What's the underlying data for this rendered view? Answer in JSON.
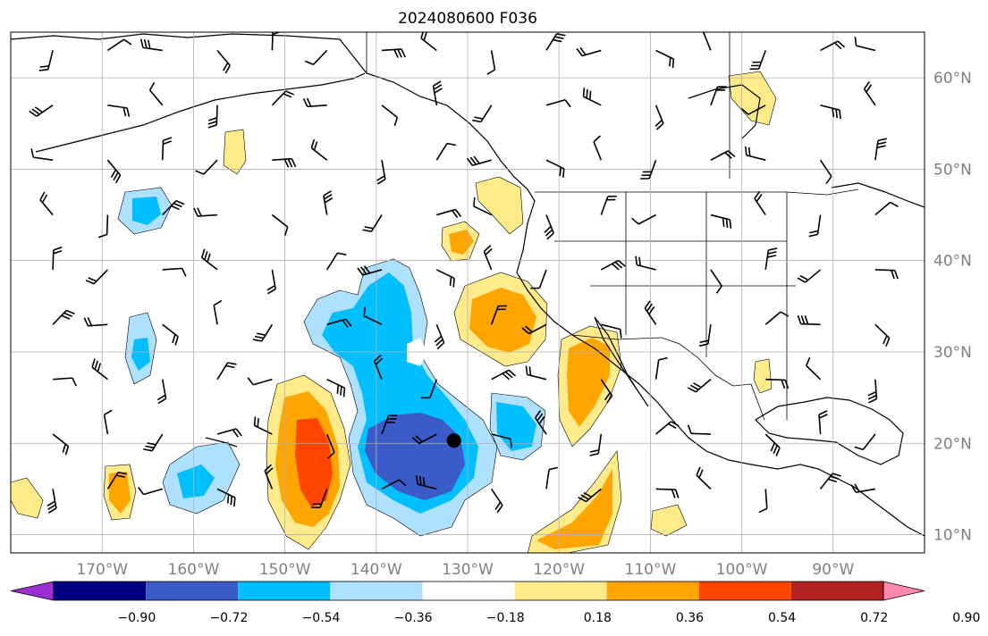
{
  "title": "2024080600 F036",
  "map": {
    "lon_range": [
      -180,
      -80
    ],
    "lat_range": [
      8,
      65
    ],
    "lon_ticks": [
      {
        "value": -170,
        "label": "170°W"
      },
      {
        "value": -160,
        "label": "160°W"
      },
      {
        "value": -150,
        "label": "150°W"
      },
      {
        "value": -140,
        "label": "140°W"
      },
      {
        "value": -130,
        "label": "130°W"
      },
      {
        "value": -120,
        "label": "120°W"
      },
      {
        "value": -110,
        "label": "110°W"
      },
      {
        "value": -100,
        "label": "100°W"
      },
      {
        "value": -90,
        "label": "90°W"
      }
    ],
    "lat_ticks": [
      {
        "value": 60,
        "label": "60°N"
      },
      {
        "value": 50,
        "label": "50°N"
      },
      {
        "value": 40,
        "label": "40°N"
      },
      {
        "value": 30,
        "label": "30°N"
      },
      {
        "value": 20,
        "label": "20°N"
      },
      {
        "value": 10,
        "label": "10°N"
      }
    ],
    "grid": true,
    "center_marker": {
      "lon": -131.5,
      "lat": 20.3
    }
  },
  "colorbar": {
    "levels": [
      -0.9,
      -0.72,
      -0.54,
      -0.36,
      -0.18,
      0.18,
      0.36,
      0.54,
      0.72,
      0.9
    ],
    "labels": [
      "−0.90",
      "−0.72",
      "−0.54",
      "−0.36",
      "−0.18",
      "0.18",
      "0.36",
      "0.54",
      "0.72",
      "0.90"
    ],
    "under_color": "#9b30d0",
    "colors": [
      "#000080",
      "#3a5bc8",
      "#00bfff",
      "#aee0ff",
      "#ffffff",
      "#ffeb8a",
      "#ffa500",
      "#ff4500",
      "#b22222"
    ],
    "over_color": "#ff88b0",
    "extend": "both"
  },
  "features": [
    {
      "id": "blue-core",
      "level": -0.54,
      "color": "#3a5bc8",
      "lon": -133,
      "lat": 19.5
    },
    {
      "id": "red-core",
      "level": 0.54,
      "color": "#ff4500",
      "lon": -146.5,
      "lat": 19
    }
  ]
}
